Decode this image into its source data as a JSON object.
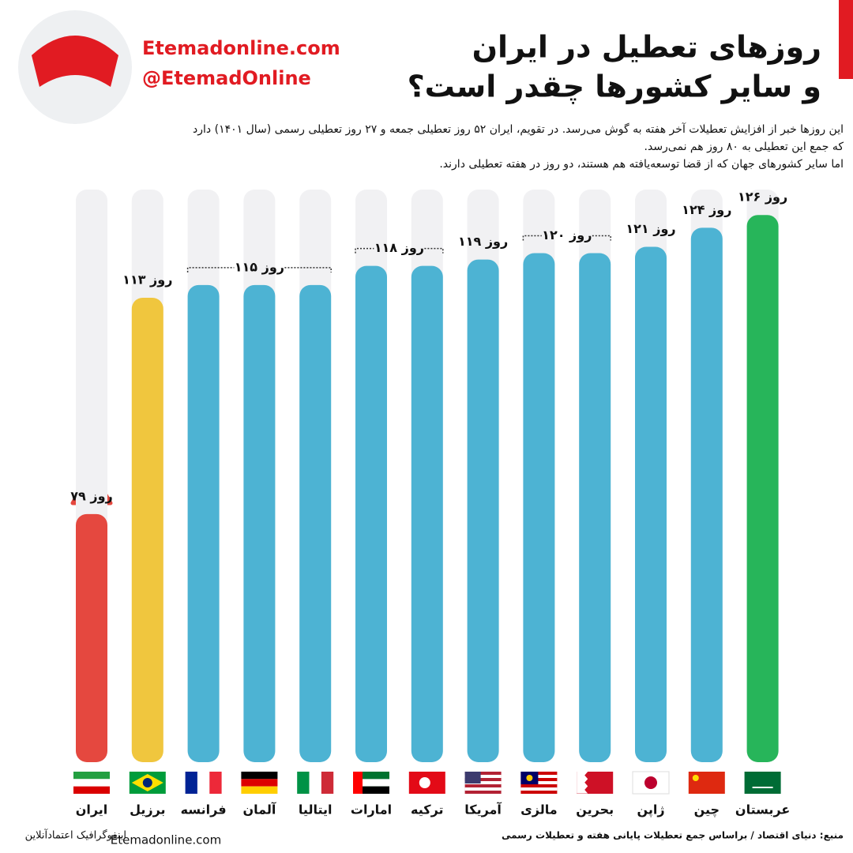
{
  "brand": {
    "site": "Etemadonline.com",
    "handle": "@EtemadOnline"
  },
  "chart_data": {
    "type": "bar",
    "title": [
      "روزهای تعطیل در ایران",
      "و سایر کشورها چقدر است؟"
    ],
    "subtitle": [
      "این روزها خبر از افزایش تعطیلات آخر هفته به گوش می‌رسد. در تقویم، ایران ۵۲ روز تعطیلی جمعه و ۲۷ روز تعطیلی رسمی (سال ۱۴۰۱) دارد",
      "که جمع این تعطیلی به ۸۰ روز هم نمی‌رسد.",
      "اما سایر کشورهای جهان که از قضا توسعه‌یافته هم هستند، دو روز در هفته تعطیلی دارند."
    ],
    "categories": [
      "ایران",
      "برزیل",
      "فرانسه",
      "آلمان",
      "ایتالیا",
      "امارات",
      "ترکیه",
      "آمریکا",
      "مالزی",
      "بحرین",
      "ژاپن",
      "چین",
      "عربستان"
    ],
    "values": [
      79,
      113,
      115,
      115,
      115,
      118,
      118,
      119,
      120,
      120,
      121,
      124,
      126
    ],
    "value_labels": [
      "۷۹ روز",
      "۱۱۳ روز",
      "۱۱۵ روز",
      null,
      null,
      "۱۱۸ روز",
      null,
      "۱۱۹ روز",
      "۱۲۰ روز",
      null,
      "۱۲۱ روز",
      "۱۲۴ روز",
      "۱۲۶ روز"
    ],
    "colors": [
      "#e5483f",
      "#f0c63e",
      "#4db3d3",
      "#4db3d3",
      "#4db3d3",
      "#4db3d3",
      "#4db3d3",
      "#4db3d3",
      "#4db3d3",
      "#4db3d3",
      "#4db3d3",
      "#4db3d3",
      "#27b55a"
    ],
    "ylim": [
      40,
      130
    ]
  },
  "footer": {
    "source": "منبع: دنیای اقتصاد / براساس جمع تعطیلات پایانی هفته و تعطیلات رسمی",
    "site": "Etemadonline.com",
    "credit": "اینفوگرافیک اعتمادآنلاین"
  }
}
